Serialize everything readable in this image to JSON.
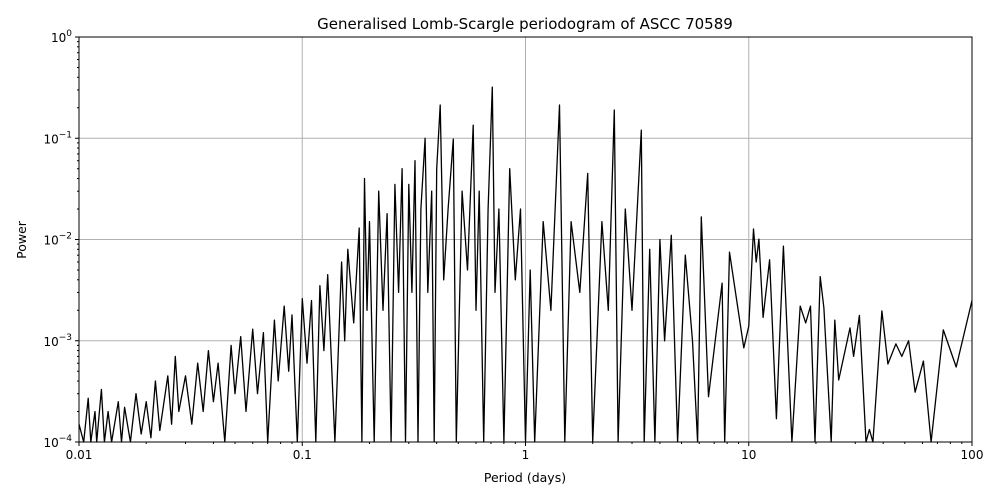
{
  "chart_data": {
    "type": "line",
    "title": "Generalised Lomb-Scargle periodogram of ASCC 70589",
    "xlabel": "Period (days)",
    "ylabel": "Power",
    "xscale": "log",
    "yscale": "log",
    "xlim": [
      0.01,
      100
    ],
    "ylim": [
      0.0001,
      1
    ],
    "grid": true,
    "line_color": "#000000",
    "grid_color": "#b0b0b0",
    "x_ticks": [
      {
        "value": 0.01,
        "label": "0.01"
      },
      {
        "value": 0.1,
        "label": "0.1"
      },
      {
        "value": 1,
        "label": "1"
      },
      {
        "value": 10,
        "label": "10"
      },
      {
        "value": 100,
        "label": "100"
      }
    ],
    "y_ticks": [
      {
        "value": 0.0001,
        "base": "10",
        "exp": "−4"
      },
      {
        "value": 0.001,
        "base": "10",
        "exp": "−3"
      },
      {
        "value": 0.01,
        "base": "10",
        "exp": "−2"
      },
      {
        "value": 0.1,
        "base": "10",
        "exp": "−1"
      },
      {
        "value": 1,
        "base": "10",
        "exp": "0"
      }
    ],
    "points": [
      [
        0.01,
        0.00015
      ],
      [
        0.0105,
        0.0001
      ],
      [
        0.011,
        0.00027
      ],
      [
        0.0113,
        0.0001
      ],
      [
        0.0118,
        0.0002
      ],
      [
        0.012,
        0.0001
      ],
      [
        0.0126,
        0.00033
      ],
      [
        0.013,
        0.0001
      ],
      [
        0.0135,
        0.0002
      ],
      [
        0.014,
        0.0001
      ],
      [
        0.015,
        0.00025
      ],
      [
        0.0155,
        0.0001
      ],
      [
        0.016,
        0.00022
      ],
      [
        0.017,
        0.0001
      ],
      [
        0.018,
        0.0003
      ],
      [
        0.019,
        0.00012
      ],
      [
        0.02,
        0.00025
      ],
      [
        0.021,
        0.00011
      ],
      [
        0.022,
        0.0004
      ],
      [
        0.023,
        0.00013
      ],
      [
        0.025,
        0.00045
      ],
      [
        0.026,
        0.00015
      ],
      [
        0.027,
        0.0007
      ],
      [
        0.028,
        0.0002
      ],
      [
        0.03,
        0.00045
      ],
      [
        0.032,
        0.00015
      ],
      [
        0.034,
        0.0006
      ],
      [
        0.036,
        0.0002
      ],
      [
        0.038,
        0.0008
      ],
      [
        0.04,
        0.00025
      ],
      [
        0.042,
        0.0006
      ],
      [
        0.045,
        0.0001
      ],
      [
        0.048,
        0.0009
      ],
      [
        0.05,
        0.0003
      ],
      [
        0.053,
        0.0011
      ],
      [
        0.056,
        0.0002
      ],
      [
        0.06,
        0.0013
      ],
      [
        0.063,
        0.0003
      ],
      [
        0.067,
        0.0012
      ],
      [
        0.07,
        0.0001
      ],
      [
        0.075,
        0.0016
      ],
      [
        0.078,
        0.0004
      ],
      [
        0.083,
        0.0022
      ],
      [
        0.087,
        0.0005
      ],
      [
        0.09,
        0.0018
      ],
      [
        0.095,
        0.0001
      ],
      [
        0.1,
        0.0026
      ],
      [
        0.105,
        0.0006
      ],
      [
        0.11,
        0.0025
      ],
      [
        0.115,
        0.0001
      ],
      [
        0.12,
        0.0035
      ],
      [
        0.125,
        0.0008
      ],
      [
        0.13,
        0.0045
      ],
      [
        0.14,
        0.0001
      ],
      [
        0.15,
        0.006
      ],
      [
        0.155,
        0.001
      ],
      [
        0.16,
        0.008
      ],
      [
        0.17,
        0.0015
      ],
      [
        0.18,
        0.013
      ],
      [
        0.185,
        0.0001
      ],
      [
        0.19,
        0.04
      ],
      [
        0.195,
        0.002
      ],
      [
        0.2,
        0.015
      ],
      [
        0.21,
        0.0001
      ],
      [
        0.22,
        0.03
      ],
      [
        0.23,
        0.002
      ],
      [
        0.24,
        0.018
      ],
      [
        0.25,
        0.0001
      ],
      [
        0.26,
        0.035
      ],
      [
        0.27,
        0.003
      ],
      [
        0.28,
        0.05
      ],
      [
        0.29,
        0.0001
      ],
      [
        0.3,
        0.035
      ],
      [
        0.31,
        0.003
      ],
      [
        0.32,
        0.06
      ],
      [
        0.33,
        0.0001
      ],
      [
        0.34,
        0.02
      ],
      [
        0.355,
        0.1
      ],
      [
        0.365,
        0.003
      ],
      [
        0.38,
        0.03
      ],
      [
        0.39,
        0.0001
      ],
      [
        0.4,
        0.05
      ],
      [
        0.415,
        0.213
      ],
      [
        0.43,
        0.004
      ],
      [
        0.45,
        0.02
      ],
      [
        0.475,
        0.098
      ],
      [
        0.49,
        0.0001
      ],
      [
        0.52,
        0.03
      ],
      [
        0.55,
        0.005
      ],
      [
        0.583,
        0.135
      ],
      [
        0.6,
        0.002
      ],
      [
        0.62,
        0.03
      ],
      [
        0.65,
        0.0001
      ],
      [
        0.68,
        0.02
      ],
      [
        0.71,
        0.32
      ],
      [
        0.73,
        0.003
      ],
      [
        0.76,
        0.02
      ],
      [
        0.8,
        0.0001
      ],
      [
        0.85,
        0.05
      ],
      [
        0.9,
        0.004
      ],
      [
        0.95,
        0.02
      ],
      [
        1.0,
        0.0001
      ],
      [
        1.05,
        0.005
      ],
      [
        1.1,
        0.0001
      ],
      [
        1.2,
        0.015
      ],
      [
        1.3,
        0.002
      ],
      [
        1.42,
        0.213
      ],
      [
        1.5,
        0.0001
      ],
      [
        1.6,
        0.015
      ],
      [
        1.75,
        0.003
      ],
      [
        1.9,
        0.045
      ],
      [
        2.0,
        0.0001
      ],
      [
        2.2,
        0.015
      ],
      [
        2.35,
        0.002
      ],
      [
        2.5,
        0.19
      ],
      [
        2.6,
        0.0001
      ],
      [
        2.8,
        0.02
      ],
      [
        3.0,
        0.002
      ],
      [
        3.3,
        0.12
      ],
      [
        3.4,
        0.0001
      ],
      [
        3.6,
        0.008
      ],
      [
        3.8,
        0.0001
      ],
      [
        4.0,
        0.01
      ],
      [
        4.2,
        0.001
      ],
      [
        4.5,
        0.011
      ],
      [
        4.8,
        0.0001
      ],
      [
        5.2,
        0.007
      ],
      [
        5.6,
        0.001
      ],
      [
        5.9,
        0.0001
      ],
      [
        6.13,
        0.0167
      ],
      [
        6.6,
        0.00028
      ],
      [
        7.6,
        0.0037
      ],
      [
        7.8,
        0.0001
      ],
      [
        8.2,
        0.0075
      ],
      [
        9.5,
        0.00085
      ],
      [
        10.0,
        0.0014
      ],
      [
        10.5,
        0.0127
      ],
      [
        10.8,
        0.006
      ],
      [
        11.1,
        0.0101
      ],
      [
        11.6,
        0.0017
      ],
      [
        12.4,
        0.0063
      ],
      [
        13.3,
        0.00017
      ],
      [
        14.3,
        0.0086
      ],
      [
        15.6,
        0.0001
      ],
      [
        17.0,
        0.0022
      ],
      [
        18.0,
        0.0015
      ],
      [
        18.9,
        0.0022
      ],
      [
        19.8,
        0.0001
      ],
      [
        20.9,
        0.0043
      ],
      [
        21.7,
        0.0021
      ],
      [
        23.4,
        0.0001
      ],
      [
        24.3,
        0.0016
      ],
      [
        25.3,
        0.00041
      ],
      [
        28.4,
        0.00134
      ],
      [
        29.5,
        0.0007
      ],
      [
        31.3,
        0.00178
      ],
      [
        33.5,
        0.0001
      ],
      [
        34.7,
        0.000133
      ],
      [
        36,
        0.0001
      ],
      [
        39.5,
        0.00197
      ],
      [
        42,
        0.00059
      ],
      [
        45.6,
        0.00093
      ],
      [
        48.5,
        0.0007
      ],
      [
        52,
        0.001
      ],
      [
        55.6,
        0.00031
      ],
      [
        60.6,
        0.00063
      ],
      [
        65.6,
        0.0001
      ],
      [
        74.4,
        0.00128
      ],
      [
        85,
        0.00055
      ],
      [
        100,
        0.0025
      ]
    ]
  }
}
